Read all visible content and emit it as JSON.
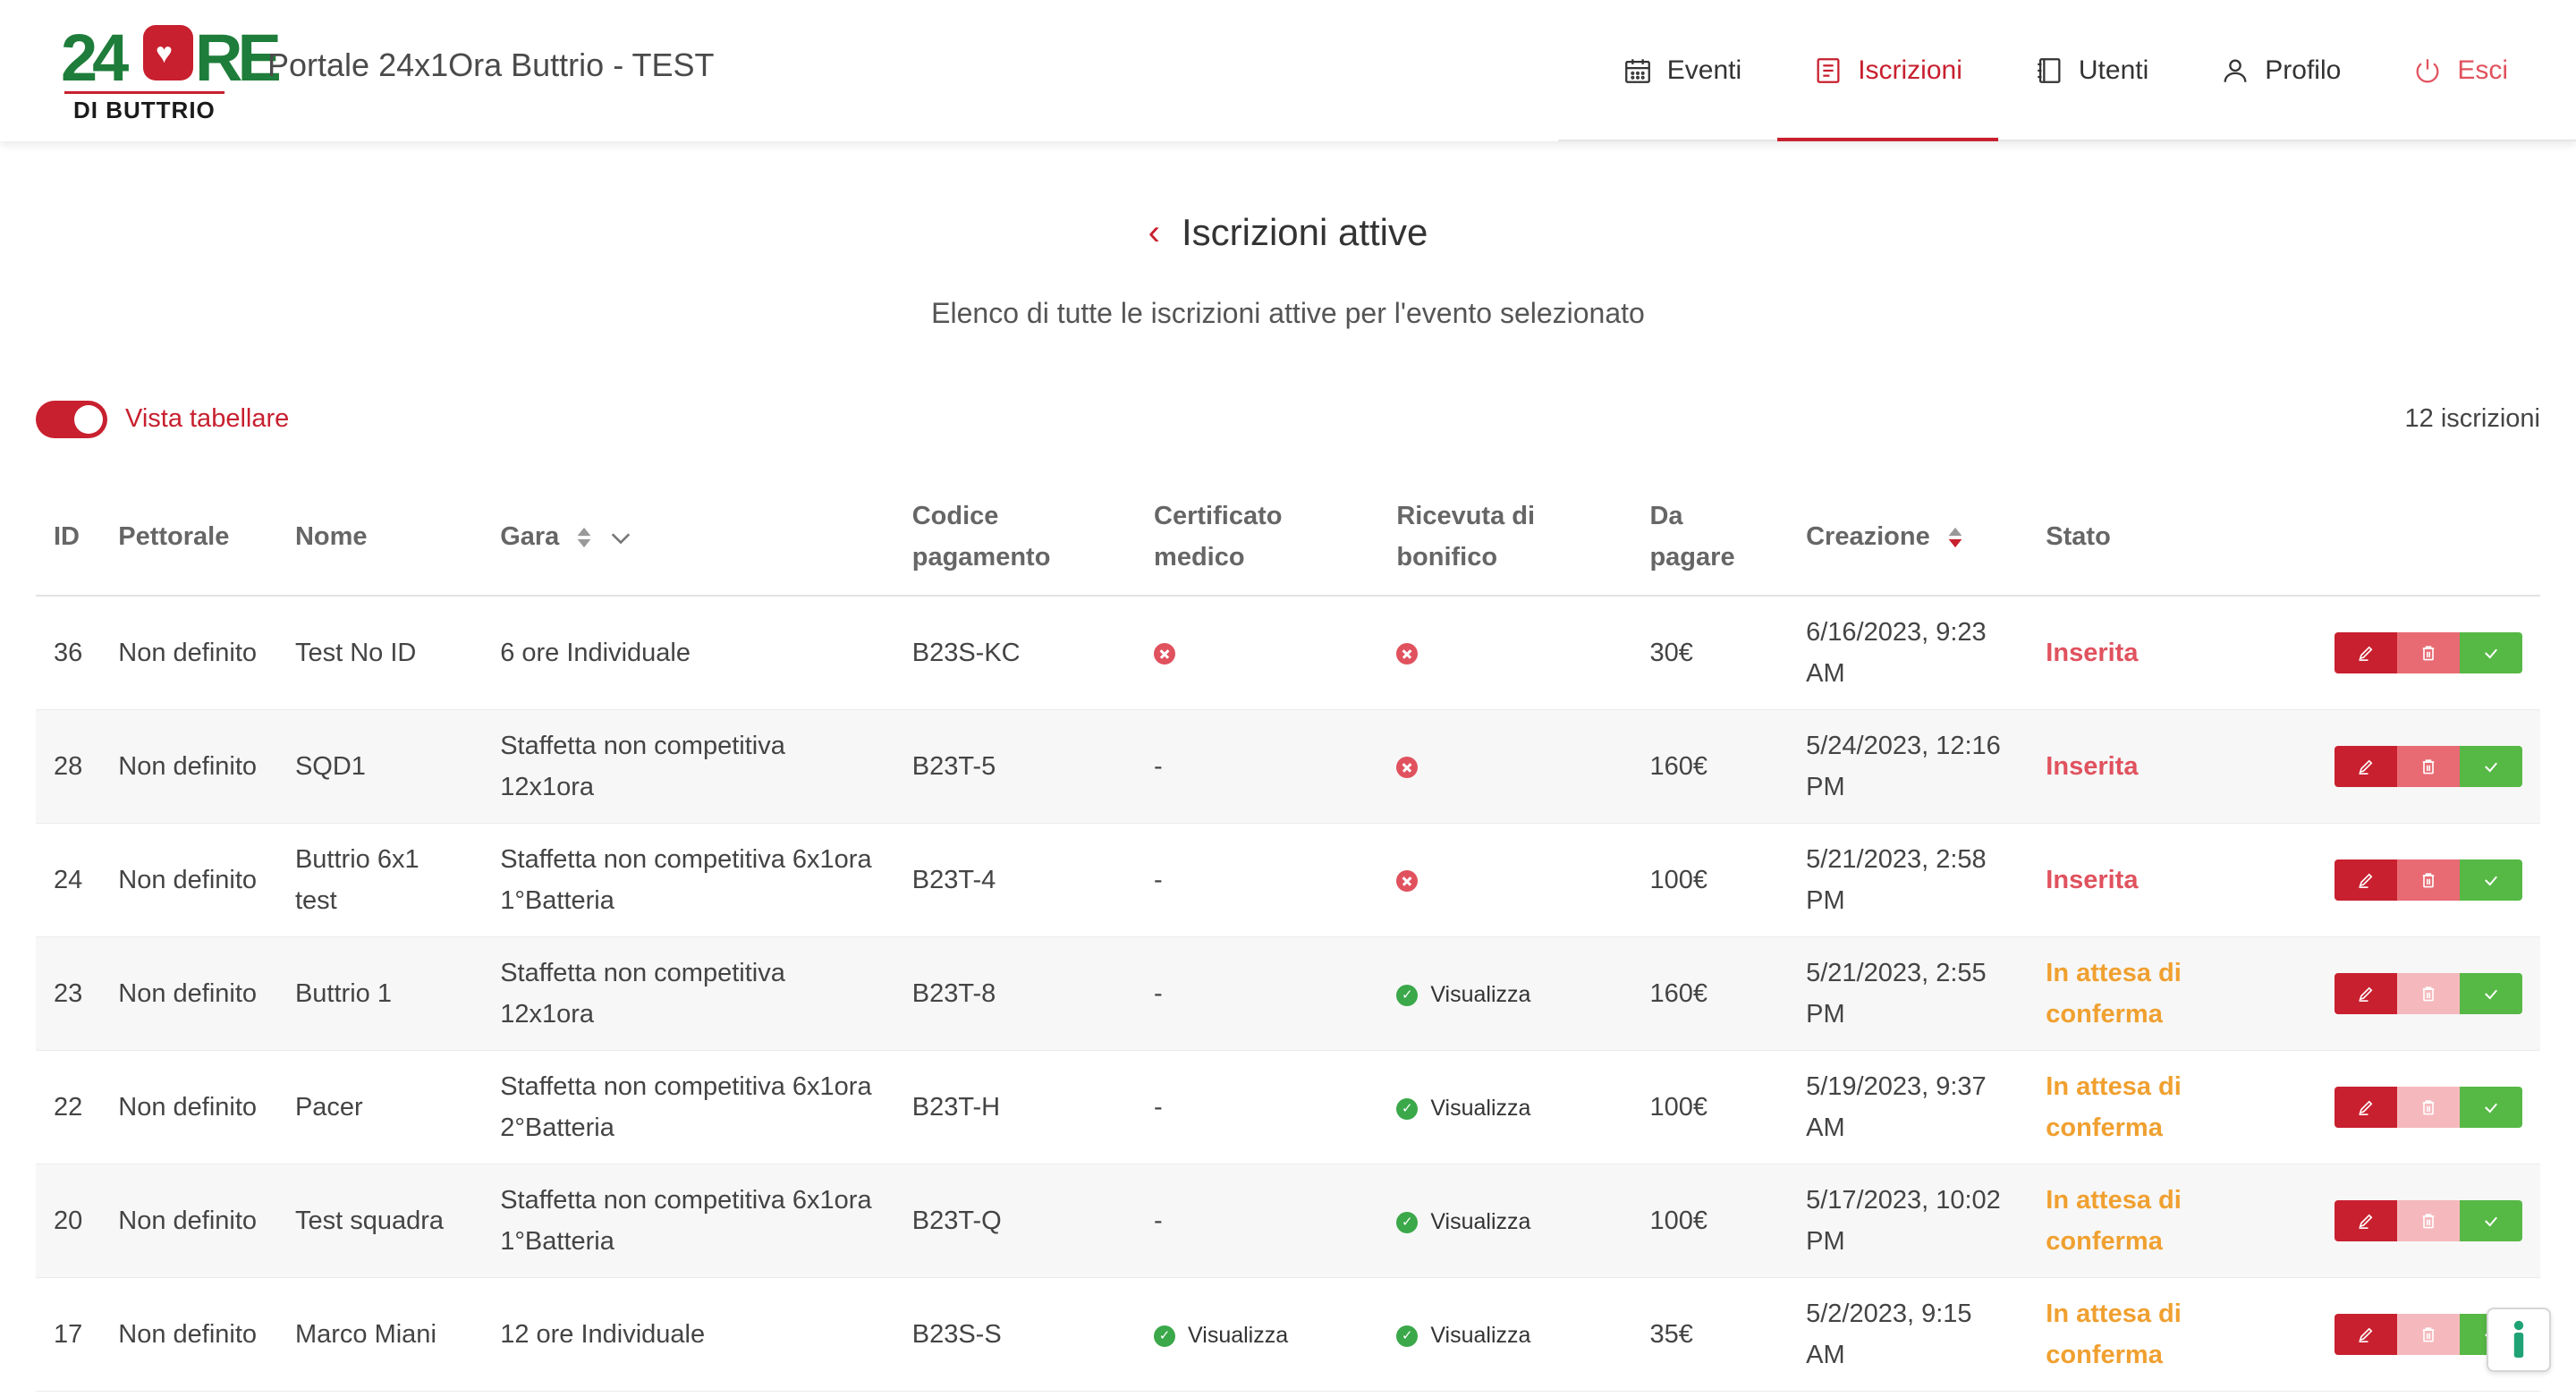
{
  "app": {
    "logo_main": "24ORE",
    "logo_sub": "DI BUTTRIO",
    "title": "Portale 24x1Ora Buttrio - TEST"
  },
  "nav": {
    "items": [
      {
        "label": "Eventi",
        "icon": "calendar-icon"
      },
      {
        "label": "Iscrizioni",
        "icon": "document-icon",
        "active": true
      },
      {
        "label": "Utenti",
        "icon": "notebook-icon"
      },
      {
        "label": "Profilo",
        "icon": "user-icon"
      },
      {
        "label": "Esci",
        "icon": "power-icon"
      }
    ]
  },
  "page": {
    "title": "Iscrizioni attive",
    "subtitle": "Elenco di tutte le iscrizioni attive per l'evento selezionato",
    "toggle_label": "Vista tabellare",
    "toggle_on": true,
    "count": "12 iscrizioni"
  },
  "colors": {
    "accent": "#c8202f",
    "status_inserted": "#e0525e",
    "status_waiting": "#f0a030",
    "confirm": "#56b845"
  },
  "table": {
    "headers": {
      "id": "ID",
      "bib": "Pettorale",
      "name": "Nome",
      "race": "Gara",
      "payment_code": "Codice pagamento",
      "certificate": "Certificato medico",
      "receipt": "Ricevuta di bonifico",
      "due": "Da pagare",
      "created": "Creazione",
      "status": "Stato"
    },
    "view_label": "Visualizza",
    "rows": [
      {
        "id": "36",
        "bib": "Non definito",
        "name": "Test No ID",
        "race": "6 ore Individuale",
        "code": "B23S-KC",
        "certificate": "x",
        "receipt": "x",
        "due": "30€",
        "created": "6/16/2023, 9:23 AM",
        "status": "Inserita",
        "status_type": "inserted",
        "delete_enabled": true
      },
      {
        "id": "28",
        "bib": "Non definito",
        "name": "SQD1",
        "race": "Staffetta non competitiva 12x1ora",
        "code": "B23T-5",
        "certificate": "-",
        "receipt": "x",
        "due": "160€",
        "created": "5/24/2023, 12:16 PM",
        "status": "Inserita",
        "status_type": "inserted",
        "delete_enabled": true
      },
      {
        "id": "24",
        "bib": "Non definito",
        "name": "Buttrio 6x1 test",
        "race": "Staffetta non competitiva 6x1ora 1°Batteria",
        "code": "B23T-4",
        "certificate": "-",
        "receipt": "x",
        "due": "100€",
        "created": "5/21/2023, 2:58 PM",
        "status": "Inserita",
        "status_type": "inserted",
        "delete_enabled": true
      },
      {
        "id": "23",
        "bib": "Non definito",
        "name": "Buttrio 1",
        "race": "Staffetta non competitiva 12x1ora",
        "code": "B23T-8",
        "certificate": "-",
        "receipt": "view",
        "due": "160€",
        "created": "5/21/2023, 2:55 PM",
        "status": "In attesa di conferma",
        "status_type": "waiting",
        "delete_enabled": false
      },
      {
        "id": "22",
        "bib": "Non definito",
        "name": "Pacer",
        "race": "Staffetta non competitiva 6x1ora 2°Batteria",
        "code": "B23T-H",
        "certificate": "-",
        "receipt": "view",
        "due": "100€",
        "created": "5/19/2023, 9:37 AM",
        "status": "In attesa di conferma",
        "status_type": "waiting",
        "delete_enabled": false
      },
      {
        "id": "20",
        "bib": "Non definito",
        "name": "Test squadra",
        "race": "Staffetta non competitiva 6x1ora 1°Batteria",
        "code": "B23T-Q",
        "certificate": "-",
        "receipt": "view",
        "due": "100€",
        "created": "5/17/2023, 10:02 PM",
        "status": "In attesa di conferma",
        "status_type": "waiting",
        "delete_enabled": false
      },
      {
        "id": "17",
        "bib": "Non definito",
        "name": "Marco Miani",
        "race": "12 ore Individuale",
        "code": "B23S-S",
        "certificate": "view",
        "receipt": "view",
        "due": "35€",
        "created": "5/2/2023, 9:15 AM",
        "status": "In attesa di conferma",
        "status_type": "waiting",
        "delete_enabled": false
      }
    ]
  }
}
